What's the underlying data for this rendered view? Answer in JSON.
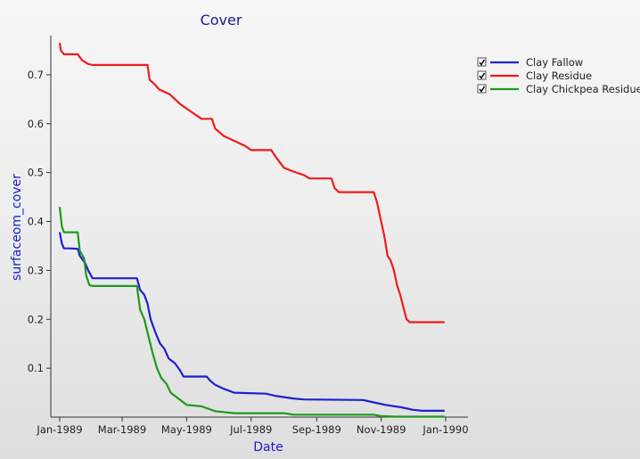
{
  "chart_data": {
    "type": "line",
    "title": "Cover",
    "xlabel": "Date",
    "ylabel": "surfaceom_cover",
    "x_axis_type": "date",
    "xlim": [
      "1989-01-01",
      "1990-01-01"
    ],
    "ylim": [
      0,
      0.78
    ],
    "x_ticks": [
      {
        "date": "1989-01-01",
        "label": "Jan-1989"
      },
      {
        "date": "1989-03-01",
        "label": "Mar-1989"
      },
      {
        "date": "1989-05-01",
        "label": "May-1989"
      },
      {
        "date": "1989-07-01",
        "label": "Jul-1989"
      },
      {
        "date": "1989-09-01",
        "label": "Sep-1989"
      },
      {
        "date": "1989-11-01",
        "label": "Nov-1989"
      },
      {
        "date": "1990-01-01",
        "label": "Jan-1990"
      }
    ],
    "y_ticks": [
      {
        "value": 0.1,
        "label": "0.1"
      },
      {
        "value": 0.2,
        "label": "0.2"
      },
      {
        "value": 0.3,
        "label": "0.3"
      },
      {
        "value": 0.4,
        "label": "0.4"
      },
      {
        "value": 0.5,
        "label": "0.5"
      },
      {
        "value": 0.6,
        "label": "0.6"
      },
      {
        "value": 0.7,
        "label": "0.7"
      }
    ],
    "grid": false,
    "legend_position": "top-right",
    "series": [
      {
        "name": "Clay Fallow",
        "color": "#1f1fd1",
        "checked": true,
        "points": [
          [
            "1989-01-01",
            0.378
          ],
          [
            "1989-01-03",
            0.355
          ],
          [
            "1989-01-05",
            0.345
          ],
          [
            "1989-01-10",
            0.345
          ],
          [
            "1989-01-18",
            0.344
          ],
          [
            "1989-01-20",
            0.33
          ],
          [
            "1989-01-25",
            0.315
          ],
          [
            "1989-01-28",
            0.3
          ],
          [
            "1989-02-01",
            0.284
          ],
          [
            "1989-03-10",
            0.284
          ],
          [
            "1989-03-15",
            0.284
          ],
          [
            "1989-03-18",
            0.26
          ],
          [
            "1989-03-22",
            0.25
          ],
          [
            "1989-03-25",
            0.232
          ],
          [
            "1989-03-28",
            0.2
          ],
          [
            "1989-04-02",
            0.17
          ],
          [
            "1989-04-06",
            0.15
          ],
          [
            "1989-04-10",
            0.14
          ],
          [
            "1989-04-14",
            0.12
          ],
          [
            "1989-04-20",
            0.11
          ],
          [
            "1989-04-25",
            0.095
          ],
          [
            "1989-04-28",
            0.083
          ],
          [
            "1989-05-20",
            0.083
          ],
          [
            "1989-05-23",
            0.075
          ],
          [
            "1989-05-28",
            0.066
          ],
          [
            "1989-06-05",
            0.058
          ],
          [
            "1989-06-15",
            0.05
          ],
          [
            "1989-07-15",
            0.048
          ],
          [
            "1989-07-25",
            0.043
          ],
          [
            "1989-08-10",
            0.038
          ],
          [
            "1989-08-20",
            0.036
          ],
          [
            "1989-10-15",
            0.035
          ],
          [
            "1989-10-25",
            0.03
          ],
          [
            "1989-11-05",
            0.025
          ],
          [
            "1989-11-20",
            0.02
          ],
          [
            "1989-12-01",
            0.015
          ],
          [
            "1989-12-10",
            0.013
          ],
          [
            "1989-12-31",
            0.013
          ]
        ]
      },
      {
        "name": "Clay Residue",
        "color": "#ee1c1c",
        "checked": true,
        "points": [
          [
            "1989-01-01",
            0.765
          ],
          [
            "1989-01-02",
            0.75
          ],
          [
            "1989-01-05",
            0.742
          ],
          [
            "1989-01-18",
            0.742
          ],
          [
            "1989-01-22",
            0.73
          ],
          [
            "1989-01-28",
            0.722
          ],
          [
            "1989-02-01",
            0.72
          ],
          [
            "1989-03-25",
            0.72
          ],
          [
            "1989-03-27",
            0.69
          ],
          [
            "1989-04-01",
            0.68
          ],
          [
            "1989-04-05",
            0.67
          ],
          [
            "1989-04-15",
            0.66
          ],
          [
            "1989-04-25",
            0.64
          ],
          [
            "1989-05-05",
            0.625
          ],
          [
            "1989-05-15",
            0.61
          ],
          [
            "1989-05-25",
            0.61
          ],
          [
            "1989-05-28",
            0.59
          ],
          [
            "1989-06-05",
            0.575
          ],
          [
            "1989-06-15",
            0.565
          ],
          [
            "1989-06-25",
            0.555
          ],
          [
            "1989-07-01",
            0.546
          ],
          [
            "1989-07-20",
            0.546
          ],
          [
            "1989-07-25",
            0.53
          ],
          [
            "1989-08-01",
            0.51
          ],
          [
            "1989-08-10",
            0.502
          ],
          [
            "1989-08-20",
            0.495
          ],
          [
            "1989-08-25",
            0.488
          ],
          [
            "1989-09-15",
            0.488
          ],
          [
            "1989-09-18",
            0.468
          ],
          [
            "1989-09-22",
            0.46
          ],
          [
            "1989-10-25",
            0.46
          ],
          [
            "1989-10-28",
            0.44
          ],
          [
            "1989-11-01",
            0.4
          ],
          [
            "1989-11-04",
            0.37
          ],
          [
            "1989-11-07",
            0.33
          ],
          [
            "1989-11-10",
            0.32
          ],
          [
            "1989-11-13",
            0.3
          ],
          [
            "1989-11-16",
            0.27
          ],
          [
            "1989-11-19",
            0.25
          ],
          [
            "1989-11-22",
            0.225
          ],
          [
            "1989-11-25",
            0.2
          ],
          [
            "1989-11-28",
            0.194
          ],
          [
            "1989-12-31",
            0.194
          ]
        ]
      },
      {
        "name": "Clay Chickpea Residue",
        "color": "#1c9a1c",
        "checked": true,
        "points": [
          [
            "1989-01-01",
            0.43
          ],
          [
            "1989-01-03",
            0.39
          ],
          [
            "1989-01-05",
            0.378
          ],
          [
            "1989-01-18",
            0.378
          ],
          [
            "1989-01-20",
            0.34
          ],
          [
            "1989-01-24",
            0.325
          ],
          [
            "1989-01-26",
            0.29
          ],
          [
            "1989-01-29",
            0.27
          ],
          [
            "1989-02-01",
            0.268
          ],
          [
            "1989-03-15",
            0.268
          ],
          [
            "1989-03-18",
            0.22
          ],
          [
            "1989-03-22",
            0.2
          ],
          [
            "1989-03-26",
            0.165
          ],
          [
            "1989-03-30",
            0.13
          ],
          [
            "1989-04-03",
            0.1
          ],
          [
            "1989-04-07",
            0.08
          ],
          [
            "1989-04-12",
            0.068
          ],
          [
            "1989-04-16",
            0.05
          ],
          [
            "1989-04-22",
            0.04
          ],
          [
            "1989-05-01",
            0.025
          ],
          [
            "1989-05-15",
            0.022
          ],
          [
            "1989-05-28",
            0.012
          ],
          [
            "1989-06-15",
            0.008
          ],
          [
            "1989-08-01",
            0.008
          ],
          [
            "1989-08-10",
            0.005
          ],
          [
            "1989-10-25",
            0.005
          ],
          [
            "1989-11-01",
            0.002
          ],
          [
            "1989-11-15",
            0.001
          ],
          [
            "1989-12-31",
            0.001
          ]
        ]
      }
    ]
  }
}
